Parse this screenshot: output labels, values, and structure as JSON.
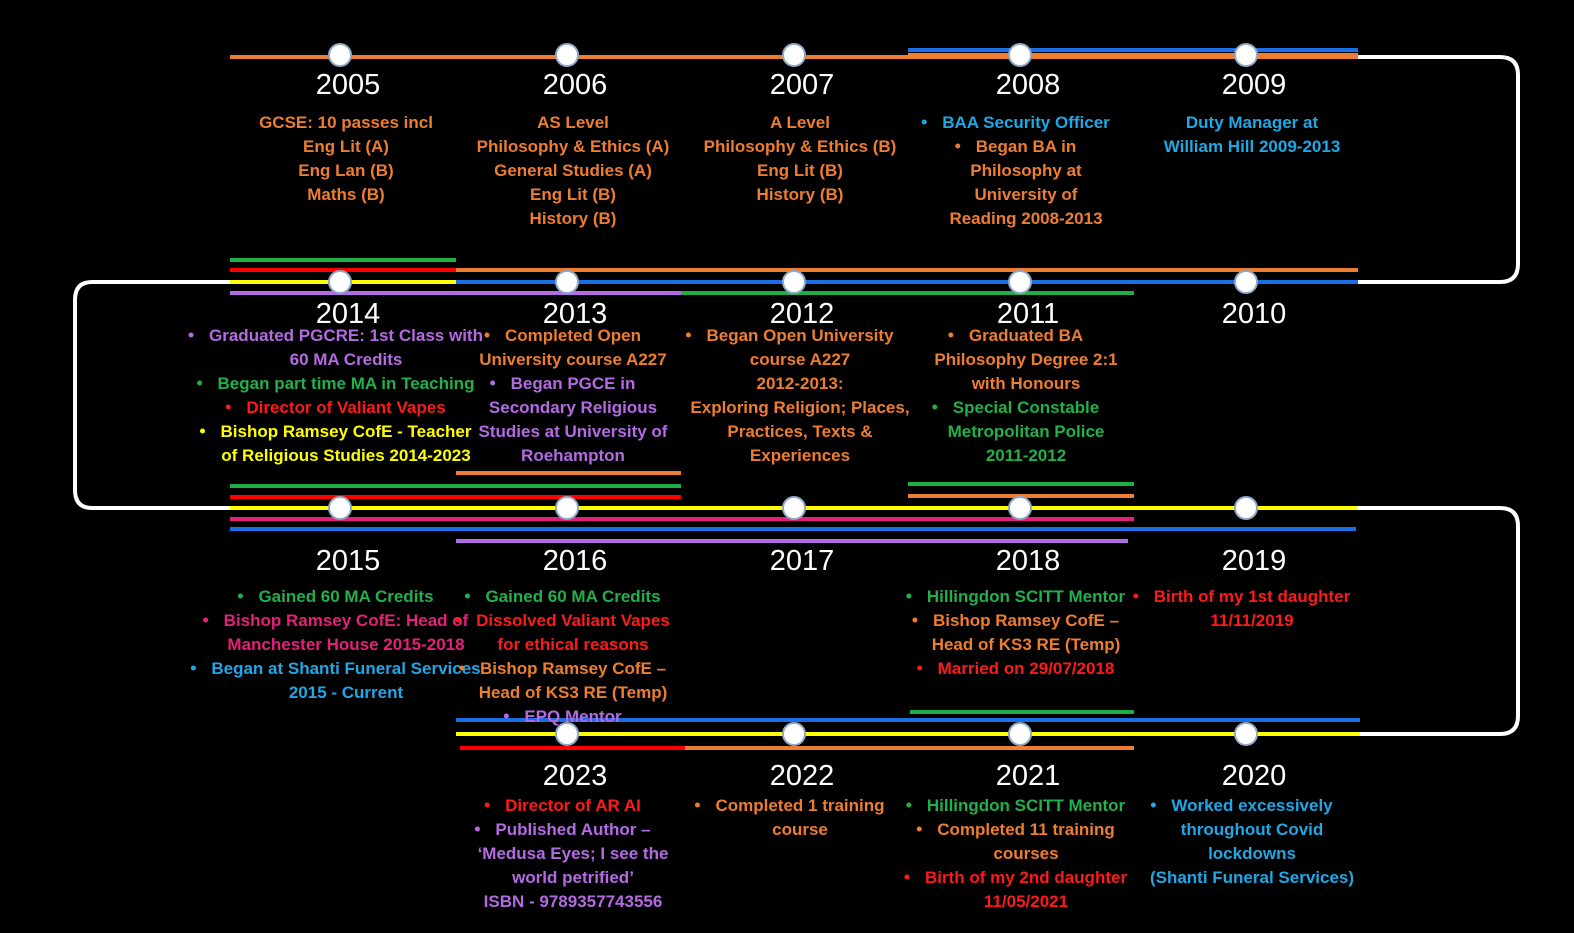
{
  "years": [
    {
      "year": "2005",
      "items": [
        {
          "color": "#ed7d31",
          "bullet": false,
          "lines": [
            "GCSE: 10 passes incl",
            "Eng Lit (A)",
            "Eng Lan (B)",
            "Maths (B)"
          ]
        }
      ]
    },
    {
      "year": "2006",
      "items": [
        {
          "color": "#ed7d31",
          "bullet": false,
          "lines": [
            "AS Level",
            "Philosophy & Ethics (A)",
            "General Studies (A)",
            "Eng Lit (B)",
            "History (B)"
          ]
        }
      ]
    },
    {
      "year": "2007",
      "items": [
        {
          "color": "#ed7d31",
          "bullet": false,
          "lines": [
            "A Level",
            "Philosophy & Ethics (B)",
            "Eng Lit (B)",
            "History (B)"
          ]
        }
      ]
    },
    {
      "year": "2008",
      "items": [
        {
          "color": "#1fa7e6",
          "bullet": true,
          "lines": [
            "BAA Security Officer"
          ]
        },
        {
          "color": "#ed7d31",
          "bullet": true,
          "lines": [
            "Began BA in",
            "Philosophy at",
            "University of",
            "Reading 2008-2013"
          ]
        }
      ]
    },
    {
      "year": "2009",
      "items": [
        {
          "color": "#1fa7e6",
          "bullet": false,
          "lines": [
            "Duty Manager at",
            "William Hill 2009-2013"
          ]
        }
      ]
    },
    {
      "year": "2010",
      "items": []
    },
    {
      "year": "2011",
      "items": [
        {
          "color": "#ed7d31",
          "bullet": true,
          "lines": [
            "Graduated BA",
            "Philosophy Degree 2:1",
            "with Honours"
          ]
        },
        {
          "color": "#22b04a",
          "bullet": true,
          "lines": [
            "Special Constable",
            "Metropolitan Police",
            "2011-2012"
          ]
        }
      ]
    },
    {
      "year": "2012",
      "items": [
        {
          "color": "#ed7d31",
          "bullet": true,
          "lines": [
            "Began Open University",
            "course A227",
            "2012-2013:",
            "Exploring Religion; Places,",
            "Practices, Texts &",
            "Experiences"
          ]
        }
      ]
    },
    {
      "year": "2013",
      "items": [
        {
          "color": "#ed7d31",
          "bullet": true,
          "lines": [
            "Completed Open",
            "University course A227"
          ]
        },
        {
          "color": "#b36ae2",
          "bullet": true,
          "lines": [
            "Began PGCE in",
            "Secondary Religious",
            "Studies at University of",
            "Roehampton"
          ]
        }
      ]
    },
    {
      "year": "2014",
      "items": [
        {
          "color": "#b36ae2",
          "bullet": true,
          "lines": [
            "Graduated PGCRE: 1st Class with",
            "60 MA Credits"
          ]
        },
        {
          "color": "#22b04a",
          "bullet": true,
          "lines": [
            "Began part time MA in Teaching"
          ]
        },
        {
          "color": "#ff1a1a",
          "bullet": true,
          "lines": [
            "Director of Valiant Vapes"
          ]
        },
        {
          "color": "#ffff00",
          "bullet": true,
          "lines": [
            "Bishop Ramsey CofE - Teacher",
            "of Religious Studies 2014-2023"
          ]
        }
      ]
    },
    {
      "year": "2015",
      "items": [
        {
          "color": "#22b04a",
          "bullet": true,
          "lines": [
            "Gained 60 MA Credits"
          ]
        },
        {
          "color": "#e6207a",
          "bullet": true,
          "lines": [
            "Bishop Ramsey CofE: Head of",
            "Manchester House 2015-2018"
          ]
        },
        {
          "color": "#1fa7e6",
          "bullet": true,
          "lines": [
            "Began at Shanti Funeral Services",
            "2015 - Current"
          ]
        }
      ]
    },
    {
      "year": "2016",
      "items": [
        {
          "color": "#22b04a",
          "bullet": true,
          "lines": [
            "Gained 60 MA Credits"
          ]
        },
        {
          "color": "#ff1a1a",
          "bullet": true,
          "lines": [
            "Dissolved Valiant Vapes",
            "for ethical reasons"
          ]
        },
        {
          "color": "#ed7d31",
          "bullet": true,
          "lines": [
            "Bishop Ramsey CofE –",
            "Head of KS3 RE (Temp)"
          ]
        },
        {
          "color": "#b36ae2",
          "bullet": true,
          "lines": [
            "EPQ Mentor"
          ]
        }
      ]
    },
    {
      "year": "2017",
      "items": []
    },
    {
      "year": "2018",
      "items": [
        {
          "color": "#22b04a",
          "bullet": true,
          "lines": [
            "Hillingdon SCITT Mentor"
          ]
        },
        {
          "color": "#ed7d31",
          "bullet": true,
          "lines": [
            "Bishop Ramsey CofE –",
            "Head of KS3 RE (Temp)"
          ]
        },
        {
          "color": "#ff1a1a",
          "bullet": true,
          "lines": [
            "Married on 29/07/2018"
          ]
        }
      ]
    },
    {
      "year": "2019",
      "items": [
        {
          "color": "#ff1a1a",
          "bullet": true,
          "lines": [
            "Birth of my 1st daughter",
            "11/11/2019"
          ]
        }
      ]
    },
    {
      "year": "2020",
      "items": [
        {
          "color": "#1fa7e6",
          "bullet": true,
          "lines": [
            "Worked excessively",
            "throughout Covid",
            "lockdowns",
            "(Shanti Funeral Services)"
          ]
        }
      ]
    },
    {
      "year": "2021",
      "items": [
        {
          "color": "#22b04a",
          "bullet": true,
          "lines": [
            "Hillingdon SCITT Mentor"
          ]
        },
        {
          "color": "#ed7d31",
          "bullet": true,
          "lines": [
            "Completed 11 training",
            "courses"
          ]
        },
        {
          "color": "#ff1a1a",
          "bullet": true,
          "lines": [
            "Birth of my 2nd daughter",
            "11/05/2021"
          ]
        }
      ]
    },
    {
      "year": "2022",
      "items": [
        {
          "color": "#ed7d31",
          "bullet": true,
          "lines": [
            "Completed 1 training",
            "course"
          ]
        }
      ]
    },
    {
      "year": "2023",
      "items": [
        {
          "color": "#ff1a1a",
          "bullet": true,
          "lines": [
            "Director of AR AI"
          ]
        },
        {
          "color": "#b36ae2",
          "bullet": true,
          "lines": [
            "Published Author –",
            "‘Medusa Eyes; I see the",
            "world petrified’",
            "ISBN - 9789357743556"
          ]
        }
      ]
    }
  ]
}
